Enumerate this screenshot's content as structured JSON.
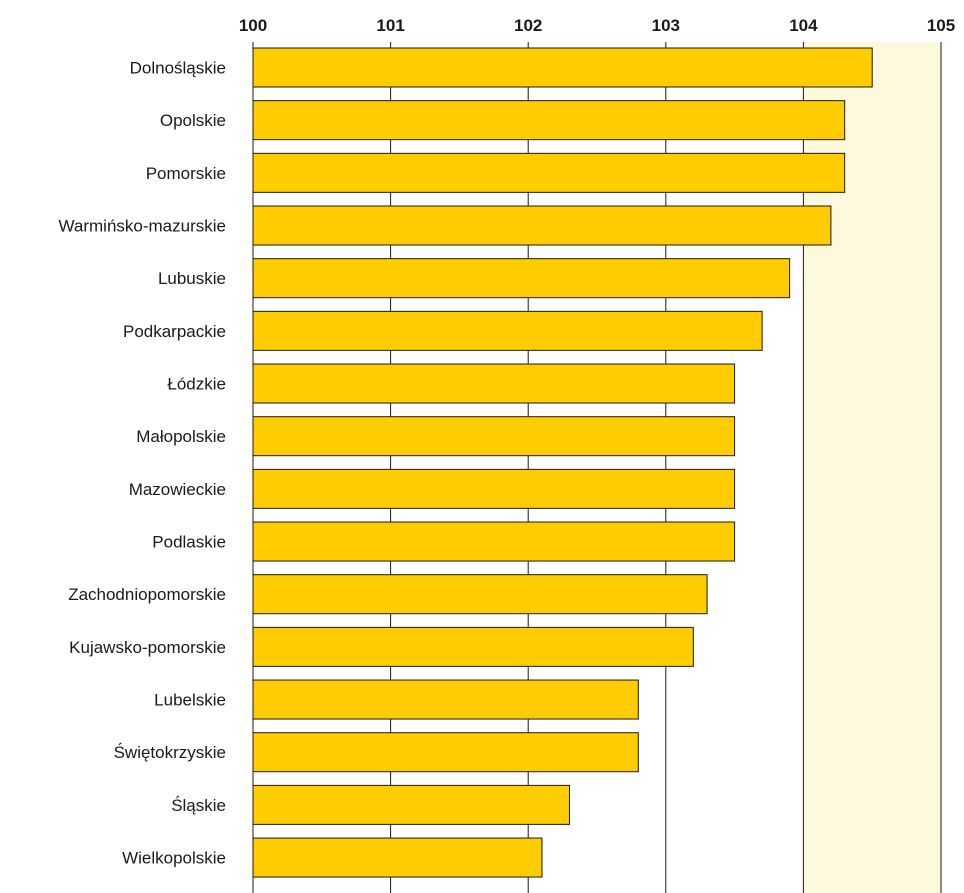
{
  "chart_data": {
    "type": "bar",
    "orientation": "horizontal",
    "title": "",
    "xlabel": "",
    "ylabel": "",
    "xlim": [
      100,
      105
    ],
    "xticks": [
      100,
      101,
      102,
      103,
      104,
      105
    ],
    "xtick_labels": [
      "100",
      "101",
      "102",
      "103",
      "104",
      "105"
    ],
    "x_axis_position": "top",
    "grid": "vertical",
    "legend": "none",
    "categories": [
      "Dolnośląskie",
      "Opolskie",
      "Pomorskie",
      "Warmińsko-mazurskie",
      "Lubuskie",
      "Podkarpackie",
      "Łódzkie",
      "Małopolskie",
      "Mazowieckie",
      "Podlaskie",
      "Zachodniopomorskie",
      "Kujawsko-pomorskie",
      "Lubelskie",
      "Świętokrzyskie",
      "Śląskie",
      "Wielkopolskie"
    ],
    "values": [
      104.5,
      104.3,
      104.3,
      104.2,
      103.9,
      103.7,
      103.5,
      103.5,
      103.5,
      103.5,
      103.3,
      103.2,
      102.8,
      102.8,
      102.3,
      102.1
    ],
    "colors": {
      "bar_fill": "#ffcc00",
      "bar_stroke": "#1a1a1a",
      "plot_background": "#fdf9dc",
      "gridline": "#1a1a1a",
      "text": "#1a1a1a"
    }
  }
}
